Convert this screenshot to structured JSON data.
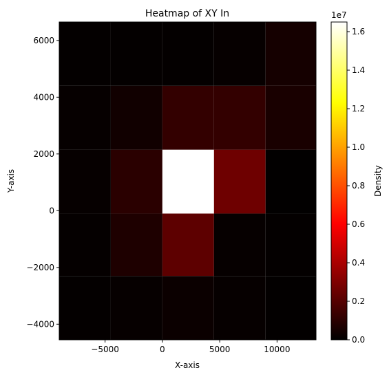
{
  "chart_data": {
    "type": "heatmap",
    "title": "Heatmap of XY In",
    "xlabel": "X-axis",
    "ylabel": "Y-axis",
    "colorbar_label": "Density",
    "colorbar_exponent": "1e7",
    "colormap": "hot",
    "xlim": [
      -9000,
      13400
    ],
    "ylim": [
      -4550,
      6650
    ],
    "x_edges": [
      -9000,
      -4500,
      0,
      4500,
      9000,
      13400
    ],
    "y_edges": [
      -4550,
      -2300,
      -100,
      2150,
      4400,
      6650
    ],
    "xticks": [
      -5000,
      0,
      5000,
      10000
    ],
    "xtick_labels": [
      "−5000",
      "0",
      "5000",
      "10000"
    ],
    "yticks": [
      -4000,
      -2000,
      0,
      2000,
      4000,
      6000
    ],
    "ytick_labels": [
      "−4000",
      "−2000",
      "0",
      "2000",
      "4000",
      "6000"
    ],
    "cbar_range": [
      0,
      16500000
    ],
    "cbar_ticks": [
      0,
      2000000,
      4000000,
      6000000,
      8000000,
      10000000,
      12000000,
      14000000,
      16000000
    ],
    "cbar_tick_labels": [
      "0.0",
      "0.2",
      "0.4",
      "0.6",
      "0.8",
      "1.0",
      "1.2",
      "1.4",
      "1.6"
    ],
    "values": [
      [
        100000,
        150000,
        250000,
        150000,
        80000
      ],
      [
        120000,
        700000,
        2200000,
        150000,
        100000
      ],
      [
        150000,
        1000000,
        16500000,
        2600000,
        50000
      ],
      [
        150000,
        400000,
        1200000,
        1200000,
        600000
      ],
      [
        100000,
        100000,
        100000,
        150000,
        500000
      ]
    ]
  }
}
